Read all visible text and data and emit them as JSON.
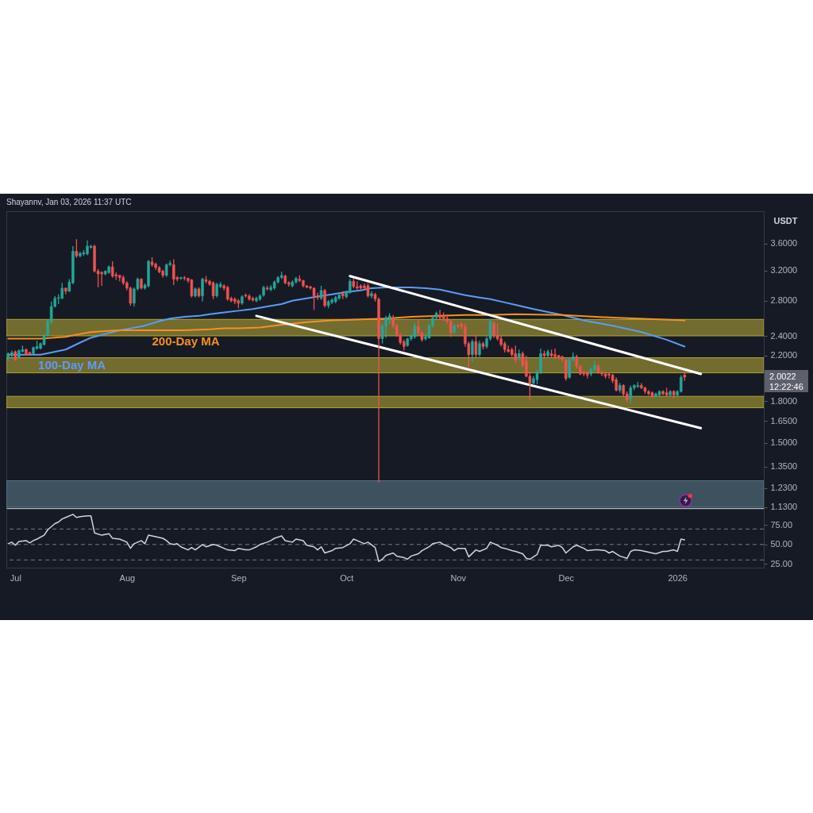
{
  "chart_data": [
    {
      "type": "candlestick",
      "ylabel": "USDT",
      "x": [
        "2025-06-29",
        "2025-06-30",
        "2025-07-01",
        "2025-07-02",
        "2025-07-03",
        "2025-07-04",
        "2025-07-05",
        "2025-07-06",
        "2025-07-07",
        "2025-07-08",
        "2025-07-09",
        "2025-07-10",
        "2025-07-11",
        "2025-07-12",
        "2025-07-13",
        "2025-07-14",
        "2025-07-15",
        "2025-07-16",
        "2025-07-17",
        "2025-07-18",
        "2025-07-19",
        "2025-07-20",
        "2025-07-21",
        "2025-07-22",
        "2025-07-23",
        "2025-07-24",
        "2025-07-25",
        "2025-07-26",
        "2025-07-27",
        "2025-07-28",
        "2025-07-29",
        "2025-07-30",
        "2025-07-31",
        "2025-08-01",
        "2025-08-02",
        "2025-08-03",
        "2025-08-04",
        "2025-08-05",
        "2025-08-06",
        "2025-08-07",
        "2025-08-08",
        "2025-08-09",
        "2025-08-10",
        "2025-08-11",
        "2025-08-12",
        "2025-08-13",
        "2025-08-14",
        "2025-08-15",
        "2025-08-16",
        "2025-08-17",
        "2025-08-18",
        "2025-08-19",
        "2025-08-20",
        "2025-08-21",
        "2025-08-22",
        "2025-08-23",
        "2025-08-24",
        "2025-08-25",
        "2025-08-26",
        "2025-08-27",
        "2025-08-28",
        "2025-08-29",
        "2025-08-30",
        "2025-08-31",
        "2025-09-01",
        "2025-09-02",
        "2025-09-03",
        "2025-09-04",
        "2025-09-05",
        "2025-09-06",
        "2025-09-07",
        "2025-09-08",
        "2025-09-09",
        "2025-09-10",
        "2025-09-11",
        "2025-09-12",
        "2025-09-13",
        "2025-09-14",
        "2025-09-15",
        "2025-09-16",
        "2025-09-17",
        "2025-09-18",
        "2025-09-19",
        "2025-09-20",
        "2025-09-21",
        "2025-09-22",
        "2025-09-23",
        "2025-09-24",
        "2025-09-25",
        "2025-09-26",
        "2025-09-27",
        "2025-09-28",
        "2025-09-29",
        "2025-09-30",
        "2025-10-01",
        "2025-10-02",
        "2025-10-03",
        "2025-10-04",
        "2025-10-05",
        "2025-10-06",
        "2025-10-07",
        "2025-10-08",
        "2025-10-09",
        "2025-10-10",
        "2025-10-11",
        "2025-10-12",
        "2025-10-13",
        "2025-10-14",
        "2025-10-15",
        "2025-10-16",
        "2025-10-17",
        "2025-10-18",
        "2025-10-19",
        "2025-10-20",
        "2025-10-21",
        "2025-10-22",
        "2025-10-23",
        "2025-10-24",
        "2025-10-25",
        "2025-10-26",
        "2025-10-27",
        "2025-10-28",
        "2025-10-29",
        "2025-10-30",
        "2025-10-31",
        "2025-11-01",
        "2025-11-02",
        "2025-11-03",
        "2025-11-04",
        "2025-11-05",
        "2025-11-06",
        "2025-11-07",
        "2025-11-08",
        "2025-11-09",
        "2025-11-10",
        "2025-11-11",
        "2025-11-12",
        "2025-11-13",
        "2025-11-14",
        "2025-11-15",
        "2025-11-16",
        "2025-11-17",
        "2025-11-18",
        "2025-11-19",
        "2025-11-20",
        "2025-11-21",
        "2025-11-22",
        "2025-11-23",
        "2025-11-24",
        "2025-11-25",
        "2025-11-26",
        "2025-11-27",
        "2025-11-28",
        "2025-11-29",
        "2025-11-30",
        "2025-12-01",
        "2025-12-02",
        "2025-12-03",
        "2025-12-04",
        "2025-12-05",
        "2025-12-06",
        "2025-12-07",
        "2025-12-08",
        "2025-12-09",
        "2025-12-10",
        "2025-12-11",
        "2025-12-12",
        "2025-12-13",
        "2025-12-14",
        "2025-12-15",
        "2025-12-16",
        "2025-12-17",
        "2025-12-18",
        "2025-12-19",
        "2025-12-20",
        "2025-12-21",
        "2025-12-22",
        "2025-12-23",
        "2025-12-24",
        "2025-12-25",
        "2025-12-26",
        "2025-12-27",
        "2025-12-28",
        "2025-12-29",
        "2025-12-30",
        "2025-12-31",
        "2026-01-01",
        "2026-01-02",
        "2026-01-03"
      ],
      "ohlc": [
        [
          2.18,
          2.23,
          2.15,
          2.22
        ],
        [
          2.2,
          2.25,
          2.18,
          2.23
        ],
        [
          2.24,
          2.25,
          2.15,
          2.16
        ],
        [
          2.18,
          2.26,
          2.17,
          2.25
        ],
        [
          2.24,
          2.3,
          2.23,
          2.26
        ],
        [
          2.26,
          2.27,
          2.2,
          2.21
        ],
        [
          2.23,
          2.24,
          2.2,
          2.21
        ],
        [
          2.22,
          2.29,
          2.21,
          2.28
        ],
        [
          2.27,
          2.35,
          2.26,
          2.29
        ],
        [
          2.27,
          2.33,
          2.26,
          2.32
        ],
        [
          2.31,
          2.42,
          2.3,
          2.4
        ],
        [
          2.4,
          2.58,
          2.39,
          2.56
        ],
        [
          2.55,
          2.79,
          2.53,
          2.73
        ],
        [
          2.73,
          2.86,
          2.72,
          2.83
        ],
        [
          2.83,
          2.88,
          2.76,
          2.84
        ],
        [
          2.83,
          3.03,
          2.82,
          2.96
        ],
        [
          2.96,
          2.97,
          2.88,
          2.92
        ],
        [
          2.92,
          3.08,
          2.91,
          3.04
        ],
        [
          3.03,
          3.56,
          3.01,
          3.48
        ],
        [
          3.48,
          3.67,
          3.38,
          3.41
        ],
        [
          3.41,
          3.47,
          3.39,
          3.45
        ],
        [
          3.44,
          3.5,
          3.41,
          3.46
        ],
        [
          3.44,
          3.65,
          3.42,
          3.56
        ],
        [
          3.54,
          3.58,
          3.52,
          3.56
        ],
        [
          3.56,
          3.58,
          3.17,
          3.19
        ],
        [
          3.19,
          3.22,
          2.97,
          3.15
        ],
        [
          3.17,
          3.19,
          2.99,
          3.15
        ],
        [
          3.15,
          3.2,
          3.13,
          3.19
        ],
        [
          3.17,
          3.27,
          3.15,
          3.25
        ],
        [
          3.25,
          3.33,
          3.1,
          3.12
        ],
        [
          3.14,
          3.17,
          3.07,
          3.12
        ],
        [
          3.13,
          3.14,
          3.05,
          3.1
        ],
        [
          3.1,
          3.13,
          3.0,
          3.03
        ],
        [
          3.03,
          3.05,
          2.93,
          2.96
        ],
        [
          2.96,
          2.98,
          2.74,
          2.77
        ],
        [
          2.77,
          2.97,
          2.73,
          2.95
        ],
        [
          2.95,
          3.1,
          2.93,
          3.08
        ],
        [
          3.08,
          3.09,
          2.94,
          2.96
        ],
        [
          2.96,
          3.02,
          2.94,
          3.0
        ],
        [
          2.99,
          3.35,
          2.97,
          3.33
        ],
        [
          3.32,
          3.39,
          3.25,
          3.28
        ],
        [
          3.29,
          3.31,
          3.21,
          3.24
        ],
        [
          3.24,
          3.26,
          3.16,
          3.18
        ],
        [
          3.19,
          3.21,
          3.1,
          3.13
        ],
        [
          3.13,
          3.3,
          3.11,
          3.28
        ],
        [
          3.28,
          3.34,
          3.26,
          3.3
        ],
        [
          3.28,
          3.36,
          3.0,
          3.08
        ],
        [
          3.1,
          3.12,
          3.05,
          3.08
        ],
        [
          3.09,
          3.11,
          3.07,
          3.1
        ],
        [
          3.1,
          3.12,
          3.06,
          3.09
        ],
        [
          3.09,
          3.1,
          3.03,
          3.06
        ],
        [
          3.07,
          3.08,
          2.84,
          2.86
        ],
        [
          2.86,
          2.97,
          2.84,
          2.95
        ],
        [
          2.95,
          2.97,
          2.84,
          2.86
        ],
        [
          2.86,
          3.1,
          2.79,
          3.08
        ],
        [
          3.07,
          3.12,
          3.02,
          3.05
        ],
        [
          3.05,
          3.07,
          2.99,
          3.01
        ],
        [
          3.03,
          3.05,
          2.82,
          2.86
        ],
        [
          2.86,
          3.03,
          2.84,
          3.01
        ],
        [
          2.98,
          3.04,
          2.96,
          3.01
        ],
        [
          2.99,
          3.01,
          2.93,
          2.96
        ],
        [
          2.97,
          2.99,
          2.8,
          2.82
        ],
        [
          2.83,
          2.85,
          2.78,
          2.8
        ],
        [
          2.82,
          2.84,
          2.76,
          2.79
        ],
        [
          2.8,
          2.82,
          2.71,
          2.77
        ],
        [
          2.77,
          2.87,
          2.75,
          2.85
        ],
        [
          2.87,
          2.89,
          2.84,
          2.86
        ],
        [
          2.86,
          2.88,
          2.8,
          2.82
        ],
        [
          2.83,
          2.85,
          2.79,
          2.81
        ],
        [
          2.8,
          2.85,
          2.78,
          2.83
        ],
        [
          2.82,
          2.88,
          2.8,
          2.86
        ],
        [
          2.87,
          2.99,
          2.85,
          2.97
        ],
        [
          2.96,
          2.99,
          2.93,
          2.95
        ],
        [
          2.94,
          3.0,
          2.92,
          2.97
        ],
        [
          2.96,
          3.06,
          2.94,
          3.04
        ],
        [
          3.04,
          3.12,
          3.02,
          3.1
        ],
        [
          3.1,
          3.18,
          3.08,
          3.13
        ],
        [
          3.12,
          3.14,
          3.01,
          3.03
        ],
        [
          3.03,
          3.05,
          2.98,
          3.01
        ],
        [
          2.99,
          3.06,
          2.97,
          3.04
        ],
        [
          3.04,
          3.11,
          3.02,
          3.09
        ],
        [
          3.08,
          3.13,
          3.04,
          3.06
        ],
        [
          3.06,
          3.07,
          2.97,
          2.99
        ],
        [
          2.99,
          3.0,
          2.96,
          2.97
        ],
        [
          2.98,
          2.99,
          2.94,
          2.96
        ],
        [
          2.96,
          2.97,
          2.69,
          2.86
        ],
        [
          2.86,
          2.9,
          2.81,
          2.84
        ],
        [
          2.83,
          2.99,
          2.81,
          2.93
        ],
        [
          2.93,
          2.95,
          2.72,
          2.74
        ],
        [
          2.74,
          2.81,
          2.71,
          2.79
        ],
        [
          2.78,
          2.83,
          2.76,
          2.81
        ],
        [
          2.79,
          2.86,
          2.77,
          2.84
        ],
        [
          2.83,
          2.89,
          2.81,
          2.87
        ],
        [
          2.89,
          2.92,
          2.82,
          2.86
        ],
        [
          2.85,
          2.93,
          2.83,
          2.91
        ],
        [
          2.9,
          3.08,
          2.89,
          3.05
        ],
        [
          3.05,
          3.09,
          2.96,
          2.98
        ],
        [
          2.98,
          3.05,
          2.94,
          2.96
        ],
        [
          2.99,
          3.01,
          2.94,
          2.96
        ],
        [
          2.99,
          3.02,
          2.93,
          2.96
        ],
        [
          2.99,
          3.02,
          2.84,
          2.86
        ],
        [
          2.86,
          2.92,
          2.83,
          2.89
        ],
        [
          2.88,
          2.9,
          2.79,
          2.82
        ],
        [
          2.82,
          2.84,
          1.26,
          2.37
        ],
        [
          2.37,
          2.53,
          2.32,
          2.51
        ],
        [
          2.5,
          2.62,
          2.38,
          2.6
        ],
        [
          2.58,
          2.65,
          2.53,
          2.62
        ],
        [
          2.6,
          2.63,
          2.48,
          2.51
        ],
        [
          2.51,
          2.53,
          2.39,
          2.41
        ],
        [
          2.41,
          2.43,
          2.31,
          2.33
        ],
        [
          2.34,
          2.36,
          2.25,
          2.29
        ],
        [
          2.3,
          2.38,
          2.29,
          2.37
        ],
        [
          2.37,
          2.42,
          2.35,
          2.4
        ],
        [
          2.39,
          2.54,
          2.37,
          2.51
        ],
        [
          2.5,
          2.58,
          2.4,
          2.43
        ],
        [
          2.43,
          2.45,
          2.34,
          2.36
        ],
        [
          2.37,
          2.42,
          2.35,
          2.39
        ],
        [
          2.38,
          2.53,
          2.37,
          2.51
        ],
        [
          2.51,
          2.62,
          2.49,
          2.6
        ],
        [
          2.6,
          2.67,
          2.58,
          2.65
        ],
        [
          2.63,
          2.69,
          2.58,
          2.6
        ],
        [
          2.61,
          2.66,
          2.56,
          2.59
        ],
        [
          2.59,
          2.64,
          2.53,
          2.56
        ],
        [
          2.56,
          2.58,
          2.39,
          2.43
        ],
        [
          2.44,
          2.53,
          2.42,
          2.51
        ],
        [
          2.51,
          2.53,
          2.48,
          2.5
        ],
        [
          2.53,
          2.55,
          2.47,
          2.5
        ],
        [
          2.5,
          2.53,
          2.29,
          2.32
        ],
        [
          2.32,
          2.34,
          2.09,
          2.21
        ],
        [
          2.21,
          2.36,
          2.14,
          2.34
        ],
        [
          2.34,
          2.41,
          2.18,
          2.21
        ],
        [
          2.21,
          2.35,
          2.19,
          2.32
        ],
        [
          2.32,
          2.34,
          2.26,
          2.29
        ],
        [
          2.29,
          2.39,
          2.27,
          2.37
        ],
        [
          2.37,
          2.58,
          2.35,
          2.56
        ],
        [
          2.54,
          2.56,
          2.38,
          2.4
        ],
        [
          2.41,
          2.54,
          2.35,
          2.37
        ],
        [
          2.37,
          2.4,
          2.29,
          2.31
        ],
        [
          2.32,
          2.34,
          2.23,
          2.26
        ],
        [
          2.26,
          2.3,
          2.23,
          2.24
        ],
        [
          2.26,
          2.28,
          2.19,
          2.21
        ],
        [
          2.22,
          2.3,
          2.13,
          2.16
        ],
        [
          2.18,
          2.26,
          2.15,
          2.22
        ],
        [
          2.22,
          2.24,
          2.09,
          2.11
        ],
        [
          2.15,
          2.2,
          2.0,
          2.01
        ],
        [
          2.01,
          2.05,
          1.81,
          1.95
        ],
        [
          1.95,
          2.01,
          1.93,
          1.99
        ],
        [
          1.98,
          2.07,
          1.94,
          2.05
        ],
        [
          2.05,
          2.27,
          2.03,
          2.22
        ],
        [
          2.22,
          2.25,
          2.17,
          2.2
        ],
        [
          2.2,
          2.26,
          2.18,
          2.24
        ],
        [
          2.22,
          2.26,
          2.18,
          2.2
        ],
        [
          2.21,
          2.27,
          2.17,
          2.19
        ],
        [
          2.2,
          2.21,
          2.16,
          2.18
        ],
        [
          2.19,
          2.2,
          2.14,
          2.16
        ],
        [
          2.16,
          2.17,
          1.97,
          1.99
        ],
        [
          2.0,
          2.18,
          1.99,
          2.16
        ],
        [
          2.16,
          2.23,
          2.14,
          2.19
        ],
        [
          2.19,
          2.21,
          2.08,
          2.1
        ],
        [
          2.1,
          2.11,
          2.02,
          2.03
        ],
        [
          2.04,
          2.06,
          2.01,
          2.03
        ],
        [
          2.04,
          2.06,
          1.99,
          2.02
        ],
        [
          2.03,
          2.09,
          2.01,
          2.07
        ],
        [
          2.07,
          2.15,
          2.05,
          2.11
        ],
        [
          2.1,
          2.12,
          2.03,
          2.05
        ],
        [
          2.04,
          2.06,
          2.01,
          2.03
        ],
        [
          2.03,
          2.05,
          1.99,
          2.01
        ],
        [
          2.03,
          2.04,
          1.99,
          2.02
        ],
        [
          2.02,
          2.03,
          1.95,
          1.97
        ],
        [
          1.98,
          2.0,
          1.88,
          1.89
        ],
        [
          1.89,
          1.95,
          1.87,
          1.93
        ],
        [
          1.93,
          1.94,
          1.84,
          1.86
        ],
        [
          1.86,
          1.88,
          1.79,
          1.81
        ],
        [
          1.82,
          1.93,
          1.78,
          1.91
        ],
        [
          1.91,
          1.94,
          1.89,
          1.93
        ],
        [
          1.92,
          1.96,
          1.91,
          1.93
        ],
        [
          1.93,
          1.95,
          1.9,
          1.91
        ],
        [
          1.91,
          1.92,
          1.86,
          1.88
        ],
        [
          1.88,
          1.89,
          1.85,
          1.86
        ],
        [
          1.87,
          1.88,
          1.83,
          1.84
        ],
        [
          1.84,
          1.87,
          1.83,
          1.86
        ],
        [
          1.85,
          1.89,
          1.84,
          1.88
        ],
        [
          1.88,
          1.89,
          1.85,
          1.86
        ],
        [
          1.87,
          1.91,
          1.84,
          1.85
        ],
        [
          1.85,
          1.89,
          1.84,
          1.88
        ],
        [
          1.88,
          1.89,
          1.82,
          1.85
        ],
        [
          1.85,
          1.89,
          1.84,
          1.88
        ],
        [
          1.88,
          2.02,
          1.87,
          2.0
        ],
        [
          2.02,
          2.05,
          1.97,
          2.0022
        ]
      ],
      "colors": [
        "#26a69a",
        "#26a69a",
        "#ef5350",
        "#26a69a",
        "#26a69a",
        "#ef5350",
        "#ef5350",
        "#26a69a",
        "#26a69a",
        "#26a69a",
        "#26a69a",
        "#26a69a",
        "#26a69a",
        "#26a69a",
        "#26a69a",
        "#26a69a",
        "#ef5350",
        "#26a69a",
        "#26a69a",
        "#ef5350",
        "#26a69a",
        "#26a69a",
        "#26a69a",
        "#26a69a",
        "#ef5350",
        "#ef5350",
        "#ef5350",
        "#26a69a",
        "#26a69a",
        "#ef5350",
        "#ef5350",
        "#ef5350",
        "#ef5350",
        "#ef5350",
        "#ef5350",
        "#26a69a",
        "#26a69a",
        "#ef5350",
        "#26a69a",
        "#26a69a",
        "#ef5350",
        "#ef5350",
        "#ef5350",
        "#ef5350",
        "#26a69a",
        "#26a69a",
        "#ef5350",
        "#ef5350",
        "#26a69a",
        "#ef5350",
        "#ef5350",
        "#ef5350",
        "#26a69a",
        "#ef5350",
        "#26a69a",
        "#ef5350",
        "#ef5350",
        "#ef5350",
        "#26a69a",
        "#26a69a",
        "#ef5350",
        "#ef5350",
        "#ef5350",
        "#ef5350",
        "#ef5350",
        "#26a69a",
        "#ef5350",
        "#ef5350",
        "#ef5350",
        "#26a69a",
        "#26a69a",
        "#26a69a",
        "#ef5350",
        "#26a69a",
        "#26a69a",
        "#26a69a",
        "#26a69a",
        "#ef5350",
        "#ef5350",
        "#26a69a",
        "#26a69a",
        "#ef5350",
        "#ef5350",
        "#ef5350",
        "#ef5350",
        "#ef5350",
        "#ef5350",
        "#26a69a",
        "#ef5350",
        "#26a69a",
        "#26a69a",
        "#26a69a",
        "#26a69a",
        "#ef5350",
        "#26a69a",
        "#26a69a",
        "#ef5350",
        "#ef5350",
        "#ef5350",
        "#ef5350",
        "#ef5350",
        "#26a69a",
        "#ef5350",
        "#ef5350",
        "#26a69a",
        "#26a69a",
        "#26a69a",
        "#ef5350",
        "#ef5350",
        "#ef5350",
        "#ef5350",
        "#26a69a",
        "#26a69a",
        "#26a69a",
        "#ef5350",
        "#ef5350",
        "#26a69a",
        "#26a69a",
        "#26a69a",
        "#26a69a",
        "#ef5350",
        "#ef5350",
        "#ef5350",
        "#ef5350",
        "#26a69a",
        "#ef5350",
        "#ef5350",
        "#ef5350",
        "#ef5350",
        "#26a69a",
        "#ef5350",
        "#26a69a",
        "#ef5350",
        "#26a69a",
        "#26a69a",
        "#ef5350",
        "#ef5350",
        "#ef5350",
        "#ef5350",
        "#ef5350",
        "#ef5350",
        "#ef5350",
        "#26a69a",
        "#ef5350",
        "#ef5350",
        "#ef5350",
        "#26a69a",
        "#26a69a",
        "#26a69a",
        "#ef5350",
        "#26a69a",
        "#ef5350",
        "#ef5350",
        "#ef5350",
        "#ef5350",
        "#ef5350",
        "#26a69a",
        "#26a69a",
        "#ef5350",
        "#ef5350",
        "#ef5350",
        "#ef5350",
        "#26a69a",
        "#26a69a",
        "#ef5350",
        "#ef5350",
        "#ef5350",
        "#ef5350",
        "#ef5350",
        "#ef5350",
        "#26a69a",
        "#ef5350",
        "#ef5350",
        "#26a69a",
        "#26a69a",
        "#26a69a",
        "#ef5350",
        "#ef5350",
        "#ef5350",
        "#ef5350",
        "#26a69a",
        "#26a69a",
        "#ef5350",
        "#ef5350",
        "#26a69a",
        "#ef5350",
        "#26a69a",
        "#26a69a",
        "#ef5350"
      ],
      "series": [
        {
          "type": "line",
          "name": "100-Day MA",
          "color": "#5b9cf6",
          "x": [
            "2025-06-29",
            "2025-07-04",
            "2025-07-08",
            "2025-07-11",
            "2025-07-15",
            "2025-07-19",
            "2025-07-22",
            "2025-07-26",
            "2025-07-30",
            "2025-08-02",
            "2025-08-06",
            "2025-08-10",
            "2025-08-13",
            "2025-08-17",
            "2025-08-21",
            "2025-08-24",
            "2025-08-28",
            "2025-09-01",
            "2025-09-05",
            "2025-09-09",
            "2025-09-13",
            "2025-09-16",
            "2025-09-20",
            "2025-09-24",
            "2025-09-27",
            "2025-10-01",
            "2025-10-05",
            "2025-10-08",
            "2025-10-12",
            "2025-10-16",
            "2025-10-19",
            "2025-10-23",
            "2025-10-27",
            "2025-10-30",
            "2025-11-03",
            "2025-11-07",
            "2025-11-10",
            "2025-11-14",
            "2025-11-17",
            "2025-11-22",
            "2025-11-30",
            "2025-12-07",
            "2025-12-14",
            "2025-12-22",
            "2025-12-29",
            "2026-01-03"
          ],
          "values": [
            2.21,
            2.21,
            2.21,
            2.23,
            2.26,
            2.33,
            2.38,
            2.42,
            2.46,
            2.48,
            2.51,
            2.56,
            2.59,
            2.61,
            2.62,
            2.64,
            2.66,
            2.68,
            2.7,
            2.73,
            2.76,
            2.8,
            2.83,
            2.86,
            2.88,
            2.91,
            2.93,
            2.96,
            2.97,
            2.97,
            2.97,
            2.96,
            2.94,
            2.91,
            2.87,
            2.84,
            2.82,
            2.78,
            2.75,
            2.7,
            2.63,
            2.56,
            2.51,
            2.44,
            2.36,
            2.29
          ]
        },
        {
          "type": "line",
          "name": "200-Day MA",
          "color": "#f5921f",
          "x": [
            "2025-06-29",
            "2025-07-04",
            "2025-07-08",
            "2025-07-15",
            "2025-07-19",
            "2025-07-22",
            "2025-07-26",
            "2025-07-30",
            "2025-08-06",
            "2025-08-17",
            "2025-08-24",
            "2025-08-28",
            "2025-09-01",
            "2025-09-07",
            "2025-09-13",
            "2025-09-20",
            "2025-09-27",
            "2025-10-05",
            "2025-10-12",
            "2025-10-19",
            "2025-10-27",
            "2025-11-03",
            "2025-11-10",
            "2025-11-17",
            "2025-11-30",
            "2025-12-14",
            "2026-01-03"
          ],
          "values": [
            2.37,
            2.37,
            2.37,
            2.39,
            2.42,
            2.44,
            2.45,
            2.46,
            2.46,
            2.46,
            2.47,
            2.48,
            2.48,
            2.49,
            2.52,
            2.55,
            2.57,
            2.58,
            2.59,
            2.61,
            2.62,
            2.63,
            2.63,
            2.64,
            2.63,
            2.6,
            2.57
          ]
        },
        {
          "type": "line",
          "color": "#ffffff",
          "x": [
            "2025-10-02",
            "2026-01-07T12:00"
          ],
          "values": [
            3.12,
            2.03
          ]
        },
        {
          "type": "line",
          "color": "#ffffff",
          "x": [
            "2025-09-06",
            "2026-01-07T12:00"
          ],
          "values": [
            2.62,
            1.6
          ]
        }
      ],
      "bands": [
        {
          "axis": "y",
          "from": 1.13,
          "to": 1.27,
          "color": "#607f90"
        },
        {
          "axis": "y",
          "from": 1.75,
          "to": 1.84,
          "color": "#c0b038"
        },
        {
          "axis": "y",
          "from": 2.04,
          "to": 2.18,
          "color": "#c0b038"
        },
        {
          "axis": "y",
          "from": 2.4,
          "to": 2.58,
          "color": "#c0b038"
        }
      ],
      "annotations": [
        "2.0022\n12:22:46",
        "Shayannv, Jan 03, 2026 11:37 UTC"
      ],
      "xlim": [
        "2025-06-28T12:00",
        "2026-01-25"
      ],
      "ylim": [
        1.126,
        4.15
      ],
      "yticks": [
        {
          "value": 1.13,
          "label": "1.1300"
        },
        {
          "value": 1.23,
          "label": "1.2300"
        },
        {
          "value": 1.35,
          "label": "1.3500"
        },
        {
          "value": 1.5,
          "label": "1.5000"
        },
        {
          "value": 1.65,
          "label": "1.6500"
        },
        {
          "value": 1.8,
          "label": "1.8000"
        },
        {
          "value": 2.2,
          "label": "2.2000"
        },
        {
          "value": 2.4,
          "label": "2.4000"
        },
        {
          "value": 2.8,
          "label": "2.8000"
        },
        {
          "value": 3.2,
          "label": "3.2000"
        },
        {
          "value": 3.6,
          "label": "3.6000"
        }
      ],
      "log": true,
      "tick_labels": "y"
    },
    {
      "type": "line",
      "color": "#d1d4dc",
      "x": [
        "2025-06-29",
        "2025-06-30",
        "2025-07-01",
        "2025-07-02",
        "2025-07-04",
        "2025-07-05",
        "2025-07-06",
        "2025-07-07",
        "2025-07-09",
        "2025-07-10",
        "2025-07-12",
        "2025-07-13",
        "2025-07-14",
        "2025-07-15",
        "2025-07-17",
        "2025-07-18",
        "2025-07-19",
        "2025-07-21",
        "2025-07-22",
        "2025-07-23",
        "2025-07-25",
        "2025-07-27",
        "2025-07-28",
        "2025-07-30",
        "2025-08-01",
        "2025-08-02",
        "2025-08-03",
        "2025-08-05",
        "2025-08-06",
        "2025-08-07",
        "2025-08-09",
        "2025-08-11",
        "2025-08-12",
        "2025-08-13",
        "2025-08-14",
        "2025-08-15",
        "2025-08-16",
        "2025-08-18",
        "2025-08-19",
        "2025-08-20",
        "2025-08-22",
        "2025-08-23",
        "2025-08-25",
        "2025-08-26",
        "2025-08-28",
        "2025-08-29",
        "2025-08-31",
        "2025-09-01",
        "2025-09-03",
        "2025-09-04",
        "2025-09-06",
        "2025-09-07",
        "2025-09-09",
        "2025-09-10",
        "2025-09-11",
        "2025-09-13",
        "2025-09-14",
        "2025-09-16",
        "2025-09-17",
        "2025-09-19",
        "2025-09-20",
        "2025-09-22",
        "2025-09-23",
        "2025-09-24",
        "2025-09-25",
        "2025-09-27",
        "2025-09-28",
        "2025-09-30",
        "2025-10-02",
        "2025-10-03",
        "2025-10-04",
        "2025-10-06",
        "2025-10-07",
        "2025-10-09",
        "2025-10-10",
        "2025-10-11",
        "2025-10-12",
        "2025-10-14",
        "2025-10-15",
        "2025-10-17",
        "2025-10-18",
        "2025-10-19",
        "2025-10-21",
        "2025-10-22",
        "2025-10-24",
        "2025-10-25",
        "2025-10-27",
        "2025-10-28",
        "2025-10-30",
        "2025-10-31",
        "2025-11-01",
        "2025-11-03",
        "2025-11-04",
        "2025-11-06",
        "2025-11-07",
        "2025-11-09",
        "2025-11-10",
        "2025-11-12",
        "2025-11-13",
        "2025-11-14",
        "2025-11-16",
        "2025-11-17",
        "2025-11-19",
        "2025-11-20",
        "2025-11-21",
        "2025-11-23",
        "2025-11-24",
        "2025-11-26",
        "2025-11-27",
        "2025-11-29",
        "2025-11-30",
        "2025-12-01",
        "2025-12-03",
        "2025-12-04",
        "2025-12-06",
        "2025-12-07",
        "2025-12-09",
        "2025-12-10",
        "2025-12-12",
        "2025-12-13",
        "2025-12-14",
        "2025-12-16",
        "2025-12-18",
        "2025-12-19",
        "2025-12-20",
        "2025-12-22",
        "2025-12-23",
        "2025-12-25",
        "2025-12-26",
        "2025-12-28",
        "2025-12-29",
        "2025-12-31",
        "2026-01-01",
        "2026-01-02",
        "2026-01-03"
      ],
      "values": [
        51,
        53,
        49,
        54,
        55,
        52,
        55,
        57,
        62,
        69,
        77,
        79,
        83,
        85,
        89,
        85,
        86,
        87,
        87,
        65,
        62,
        64,
        58,
        57,
        53,
        45,
        51,
        55,
        51,
        62,
        60,
        58,
        55,
        51,
        50,
        51,
        47,
        43,
        46,
        43,
        50,
        47,
        50,
        49,
        45,
        43,
        42,
        45,
        43,
        43,
        47,
        50,
        53,
        55,
        58,
        61,
        55,
        53,
        57,
        55,
        49,
        47,
        43,
        47,
        39,
        42,
        45,
        46,
        51,
        57,
        55,
        51,
        53,
        46,
        28,
        31,
        36,
        39,
        35,
        33,
        31,
        35,
        38,
        42,
        47,
        51,
        53,
        50,
        46,
        42,
        45,
        45,
        34,
        43,
        41,
        45,
        53,
        49,
        46,
        45,
        42,
        41,
        38,
        32,
        31,
        37,
        49,
        49,
        47,
        49,
        46,
        39,
        47,
        49,
        45,
        42,
        43,
        43,
        42,
        39,
        41,
        35,
        32,
        41,
        43,
        42,
        41,
        39,
        38,
        41,
        41,
        43,
        41,
        57,
        56
      ],
      "ref_lines": [
        {
          "axis": "y",
          "value": 70,
          "color": "#787b86",
          "line_style": "dashed"
        },
        {
          "axis": "y",
          "value": 50,
          "color": "#787b86",
          "line_style": "dashed"
        },
        {
          "axis": "y",
          "value": 30,
          "color": "#787b86",
          "line_style": "dashed"
        }
      ],
      "xlim": [
        "2025-06-28T12:00",
        "2026-01-25"
      ],
      "xticks": [
        {
          "value": "2025-07-01",
          "label": "Jul"
        },
        {
          "value": "2025-08-01",
          "label": "Aug"
        },
        {
          "value": "2025-09-01",
          "label": "Sep"
        },
        {
          "value": "2025-10-01",
          "label": "Oct"
        },
        {
          "value": "2025-11-01",
          "label": "Nov"
        },
        {
          "value": "2025-12-01",
          "label": "Dec"
        },
        {
          "value": "2026-01-01",
          "label": "2026"
        }
      ],
      "ylim": [
        20,
        96
      ],
      "yticks": [
        {
          "value": 25,
          "label": "25.00"
        },
        {
          "value": 50,
          "label": "50.00"
        },
        {
          "value": 75,
          "label": "75.00"
        }
      ]
    }
  ]
}
